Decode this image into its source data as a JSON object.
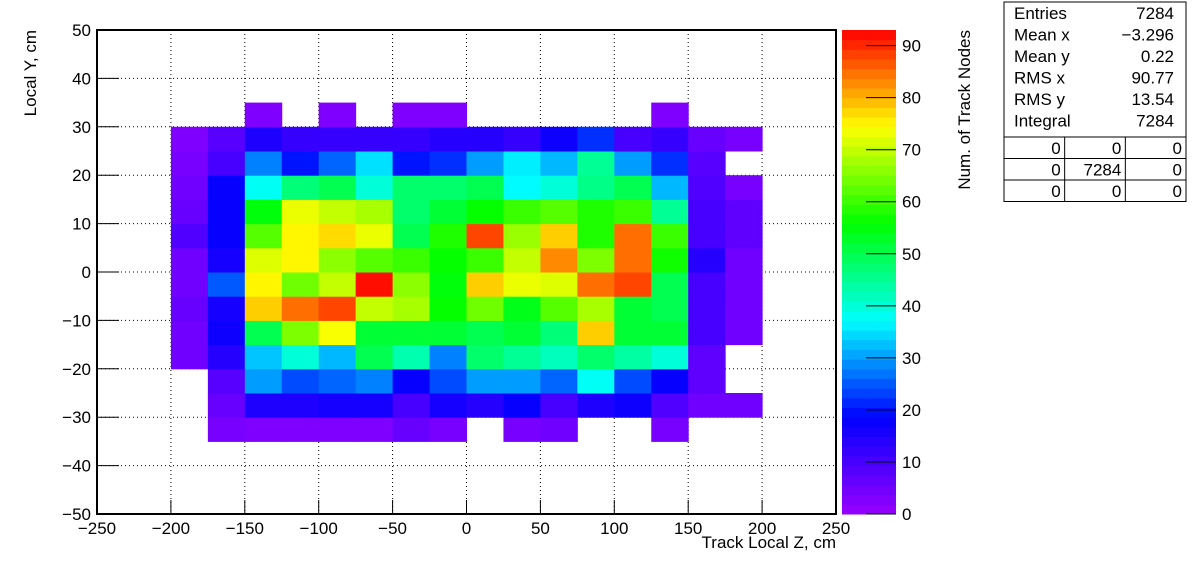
{
  "chart_data": {
    "type": "heatmap",
    "xlabel": "Track Local Z, cm",
    "ylabel": "Local Y, cm",
    "zlabel": "Num. of Track Nodes",
    "xbins": [
      -200,
      -175,
      -150,
      -125,
      -100,
      -75,
      -50,
      -25,
      0,
      25,
      50,
      75,
      100,
      125,
      150,
      175,
      200
    ],
    "ybins": [
      -35,
      -30,
      -25,
      -20,
      -15,
      -10,
      -5,
      0,
      5,
      10,
      15,
      20,
      25,
      30,
      35
    ],
    "values": [
      [
        null,
        4,
        3,
        3,
        3,
        3,
        6,
        4,
        null,
        4,
        5,
        null,
        null,
        4,
        null,
        null
      ],
      [
        null,
        6,
        15,
        15,
        16,
        16,
        10,
        16,
        14,
        18,
        10,
        15,
        17,
        9,
        5,
        5
      ],
      [
        null,
        8,
        30,
        24,
        26,
        28,
        18,
        24,
        30,
        30,
        26,
        38,
        24,
        18,
        7,
        null
      ],
      [
        5,
        14,
        33,
        40,
        32,
        50,
        43,
        28,
        48,
        45,
        42,
        48,
        44,
        40,
        7,
        null
      ],
      [
        5,
        17,
        50,
        65,
        74,
        52,
        52,
        52,
        50,
        52,
        47,
        78,
        52,
        52,
        10,
        5
      ],
      [
        6,
        16,
        78,
        85,
        88,
        70,
        68,
        56,
        64,
        54,
        62,
        68,
        52,
        50,
        10,
        5
      ],
      [
        5,
        25,
        75,
        64,
        70,
        92,
        66,
        55,
        78,
        73,
        72,
        85,
        88,
        50,
        10,
        5
      ],
      [
        5,
        16,
        72,
        75,
        66,
        62,
        60,
        56,
        60,
        70,
        83,
        65,
        85,
        57,
        14,
        5
      ],
      [
        9,
        18,
        62,
        75,
        77,
        73,
        50,
        58,
        88,
        67,
        78,
        58,
        85,
        60,
        10,
        7
      ],
      [
        6,
        18,
        55,
        73,
        70,
        68,
        48,
        52,
        56,
        60,
        62,
        58,
        60,
        45,
        10,
        7
      ],
      [
        5,
        18,
        38,
        47,
        50,
        40,
        48,
        48,
        50,
        37,
        40,
        46,
        50,
        32,
        9,
        4
      ],
      [
        4,
        10,
        28,
        20,
        26,
        35,
        20,
        22,
        30,
        36,
        32,
        45,
        30,
        22,
        8,
        null
      ],
      [
        3,
        8,
        15,
        12,
        12,
        12,
        12,
        14,
        14,
        12,
        17,
        22,
        10,
        12,
        6,
        4
      ],
      [
        null,
        null,
        3,
        null,
        3,
        null,
        3,
        3,
        null,
        null,
        null,
        null,
        null,
        3,
        null,
        null
      ]
    ],
    "xlim": [
      -250,
      250
    ],
    "xticks": [
      {
        "value": -250,
        "label": "−250"
      },
      {
        "value": -200,
        "label": "−200"
      },
      {
        "value": -150,
        "label": "−150"
      },
      {
        "value": -100,
        "label": "−100"
      },
      {
        "value": -50,
        "label": "−50"
      },
      0,
      50,
      100,
      150,
      200,
      250
    ],
    "ylim": [
      -50,
      50
    ],
    "yticks": [
      {
        "value": -50,
        "label": "−50"
      },
      {
        "value": -40,
        "label": "−40"
      },
      {
        "value": -30,
        "label": "−30"
      },
      {
        "value": -20,
        "label": "−20"
      },
      {
        "value": -10,
        "label": "−10"
      },
      0,
      10,
      20,
      30,
      40,
      50
    ],
    "zlim": [
      0,
      93
    ],
    "zticks": [
      0,
      10,
      20,
      30,
      40,
      50,
      60,
      70,
      80,
      90
    ],
    "colorscale": [
      "#9900ff",
      "#0000ff",
      "#00ffff",
      "#00ff00",
      "#ffff00",
      "#ff0000"
    ],
    "grid": true,
    "stats": {
      "rows": [
        [
          "Entries",
          "7284"
        ],
        [
          "Mean x",
          "−3.296"
        ],
        [
          "Mean y",
          "0.22"
        ],
        [
          "RMS x",
          "90.77"
        ],
        [
          "RMS y",
          "13.54"
        ],
        [
          "Integral",
          "7284"
        ]
      ],
      "grid": [
        [
          "0",
          "0",
          "0"
        ],
        [
          "0",
          "7284",
          "0"
        ],
        [
          "0",
          "0",
          "0"
        ]
      ]
    }
  }
}
